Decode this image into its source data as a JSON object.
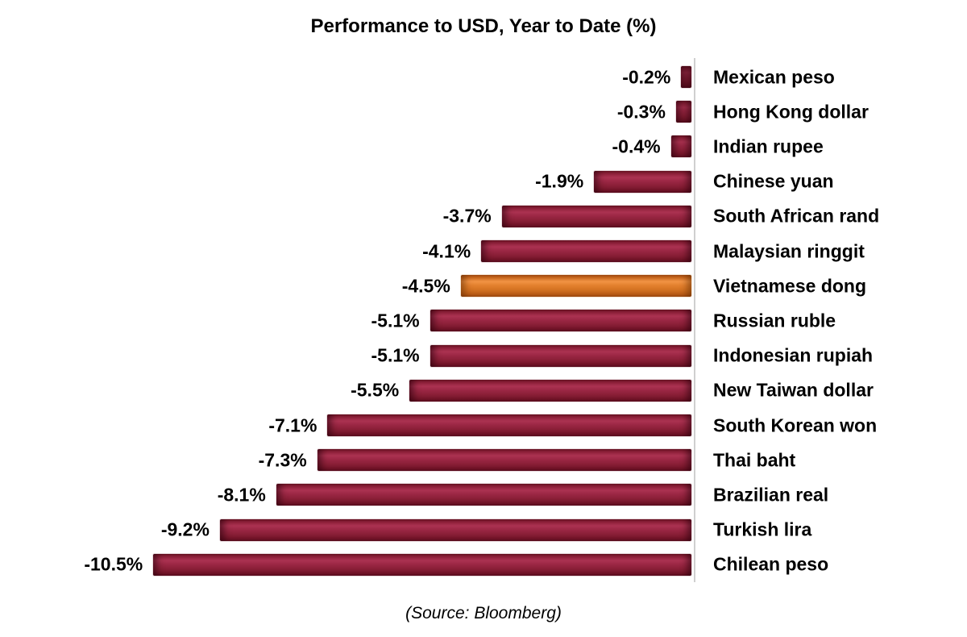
{
  "chart_data": {
    "type": "bar",
    "orientation": "horizontal",
    "title": "Performance to USD, Year to Date (%)",
    "source": "(Source: Bloomberg)",
    "categories": [
      "Mexican peso",
      "Hong Kong dollar",
      "Indian rupee",
      "Chinese yuan",
      "South African rand",
      "Malaysian ringgit",
      "Vietnamese dong",
      "Russian ruble",
      "Indonesian rupiah",
      "New Taiwan dollar",
      "South Korean won",
      "Thai baht",
      "Brazilian real",
      "Turkish lira",
      "Chilean peso"
    ],
    "values": [
      -0.2,
      -0.3,
      -0.4,
      -1.9,
      -3.7,
      -4.1,
      -4.5,
      -5.1,
      -5.1,
      -5.5,
      -7.1,
      -7.3,
      -8.1,
      -9.2,
      -10.5
    ],
    "value_labels": [
      "-0.2%",
      "-0.3%",
      "-0.4%",
      "-1.9%",
      "-3.7%",
      "-4.1%",
      "-4.5%",
      "-5.1%",
      "-5.1%",
      "-5.5%",
      "-7.1%",
      "-7.3%",
      "-8.1%",
      "-9.2%",
      "-10.5%"
    ],
    "highlight_index": 6,
    "bar_color": "#94203C",
    "highlight_color": "#DE7B2B",
    "label_color": "#000000",
    "axis_color": "#CFCFCF",
    "xlim": [
      -10.5,
      0
    ],
    "grid": false,
    "legend": false
  }
}
